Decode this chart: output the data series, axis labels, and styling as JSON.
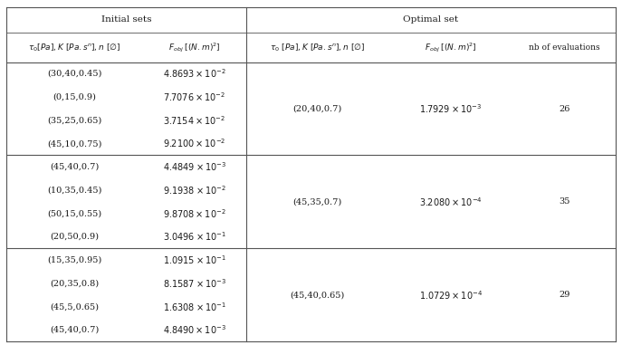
{
  "groups": [
    {
      "init_sets": [
        [
          "(30,40,0.45)",
          "4.8693 × 10⁻²"
        ],
        [
          "(0,15,0.9)",
          "7.7076 × 10⁻²"
        ],
        [
          "(35,25,0.65)",
          "3.7154 × 10⁻²"
        ],
        [
          "(45,10,0.75)",
          "9.2100 × 10⁻²"
        ]
      ],
      "opt_set": "(20,40,0.7)",
      "opt_fobj_base": "1.7929",
      "opt_fobj_exp": "-3",
      "nb_eval": "26"
    },
    {
      "init_sets": [
        [
          "(45,40,0.7)",
          "4.4849 × 10⁻³"
        ],
        [
          "(10,35,0.45)",
          "9.1938 × 10⁻²"
        ],
        [
          "(50,15,0.55)",
          "9.8708 × 10⁻²"
        ],
        [
          "(20,50,0.9)",
          "3.0496 × 10⁻¹"
        ]
      ],
      "opt_set": "(45,35,0.7)",
      "opt_fobj_base": "3.2080",
      "opt_fobj_exp": "-4",
      "nb_eval": "35"
    },
    {
      "init_sets": [
        [
          "(15,35,0.95)",
          "1.0915 × 10⁻¹"
        ],
        [
          "(20,35,0.8)",
          "8.1587 × 10⁻³"
        ],
        [
          "(45,5,0.65)",
          "1.6308 × 10⁻¹"
        ],
        [
          "(45,40,0.7)",
          "4.8490 × 10⁻³"
        ]
      ],
      "opt_set": "(45,40,0.65)",
      "opt_fobj_base": "1.0729",
      "opt_fobj_exp": "-4",
      "nb_eval": "29"
    }
  ],
  "bg_color": "#ffffff",
  "text_color": "#1a1a1a",
  "line_color": "#555555",
  "font_size": 7.0,
  "header_font_size": 7.5
}
